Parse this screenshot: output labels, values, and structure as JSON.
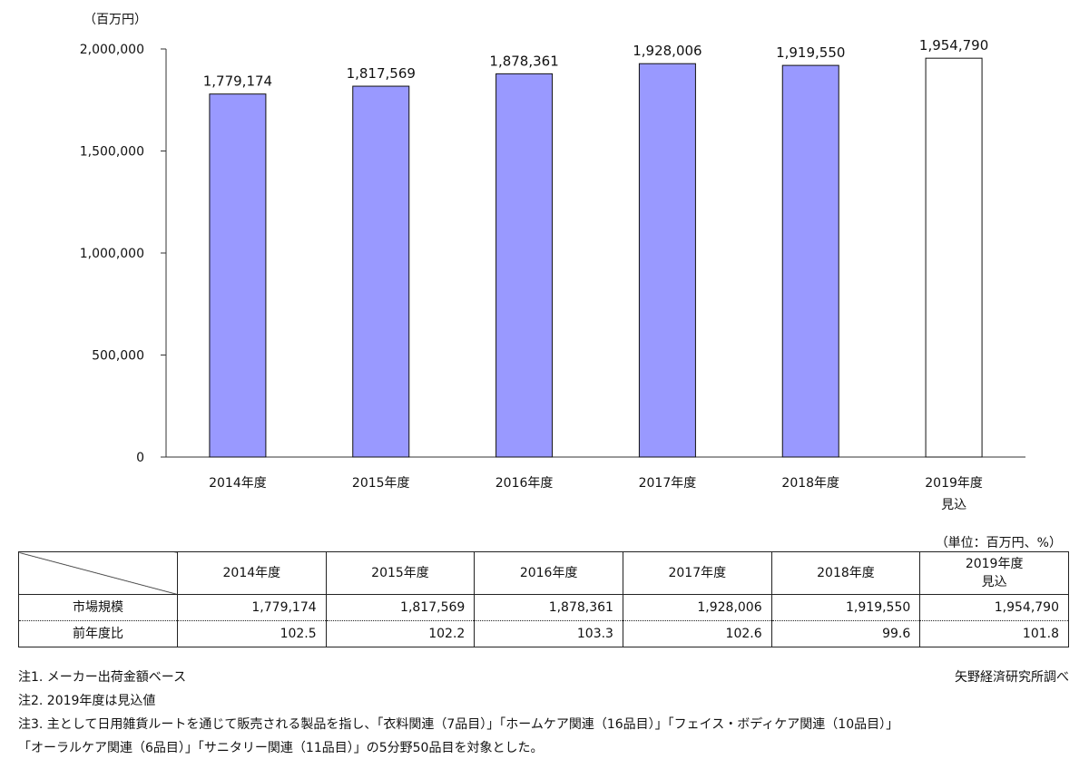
{
  "chart_data": {
    "type": "bar",
    "y_unit_label": "（百万円）",
    "categories": [
      [
        "2014年度"
      ],
      [
        "2015年度"
      ],
      [
        "2016年度"
      ],
      [
        "2017年度"
      ],
      [
        "2018年度"
      ],
      [
        "2019年度",
        "見込"
      ]
    ],
    "values": [
      1779174,
      1817569,
      1878361,
      1928006,
      1919550,
      1954790
    ],
    "value_labels": [
      "1,779,174",
      "1,817,569",
      "1,878,361",
      "1,928,006",
      "1,919,550",
      "1,954,790"
    ],
    "bar_colors": [
      "#9999ff",
      "#9999ff",
      "#9999ff",
      "#9999ff",
      "#9999ff",
      "#ffffff"
    ],
    "ylim": [
      0,
      2000000
    ],
    "yticks": [
      0,
      500000,
      1000000,
      1500000,
      2000000
    ],
    "ytick_labels": [
      "0",
      "500,000",
      "1,000,000",
      "1,500,000",
      "2,000,000"
    ],
    "grid": false,
    "legend": "none"
  },
  "table": {
    "unit_note": "（単位：百万円、%）",
    "headers": [
      [
        "2014年度"
      ],
      [
        "2015年度"
      ],
      [
        "2016年度"
      ],
      [
        "2017年度"
      ],
      [
        "2018年度"
      ],
      [
        "2019年度",
        "見込"
      ]
    ],
    "rows": [
      {
        "label": "市場規模",
        "values": [
          "1,779,174",
          "1,817,569",
          "1,878,361",
          "1,928,006",
          "1,919,550",
          "1,954,790"
        ]
      },
      {
        "label": "前年度比",
        "values": [
          "102.5",
          "102.2",
          "103.3",
          "102.6",
          "99.6",
          "101.8"
        ]
      }
    ]
  },
  "notes": [
    "注1. メーカー出荷金額ベース",
    "注2. 2019年度は見込値",
    "注3. 主として日用雑貨ルートを通じて販売される製品を指し、「衣料関連（7品目）」「ホームケア関連（16品目）」「フェイス・ボディケア関連（10品目）」",
    "「オーラルケア関連（6品目）」「サニタリー関連（11品目）」の5分野50品目を対象とした。"
  ],
  "source": "矢野経済研究所調べ"
}
